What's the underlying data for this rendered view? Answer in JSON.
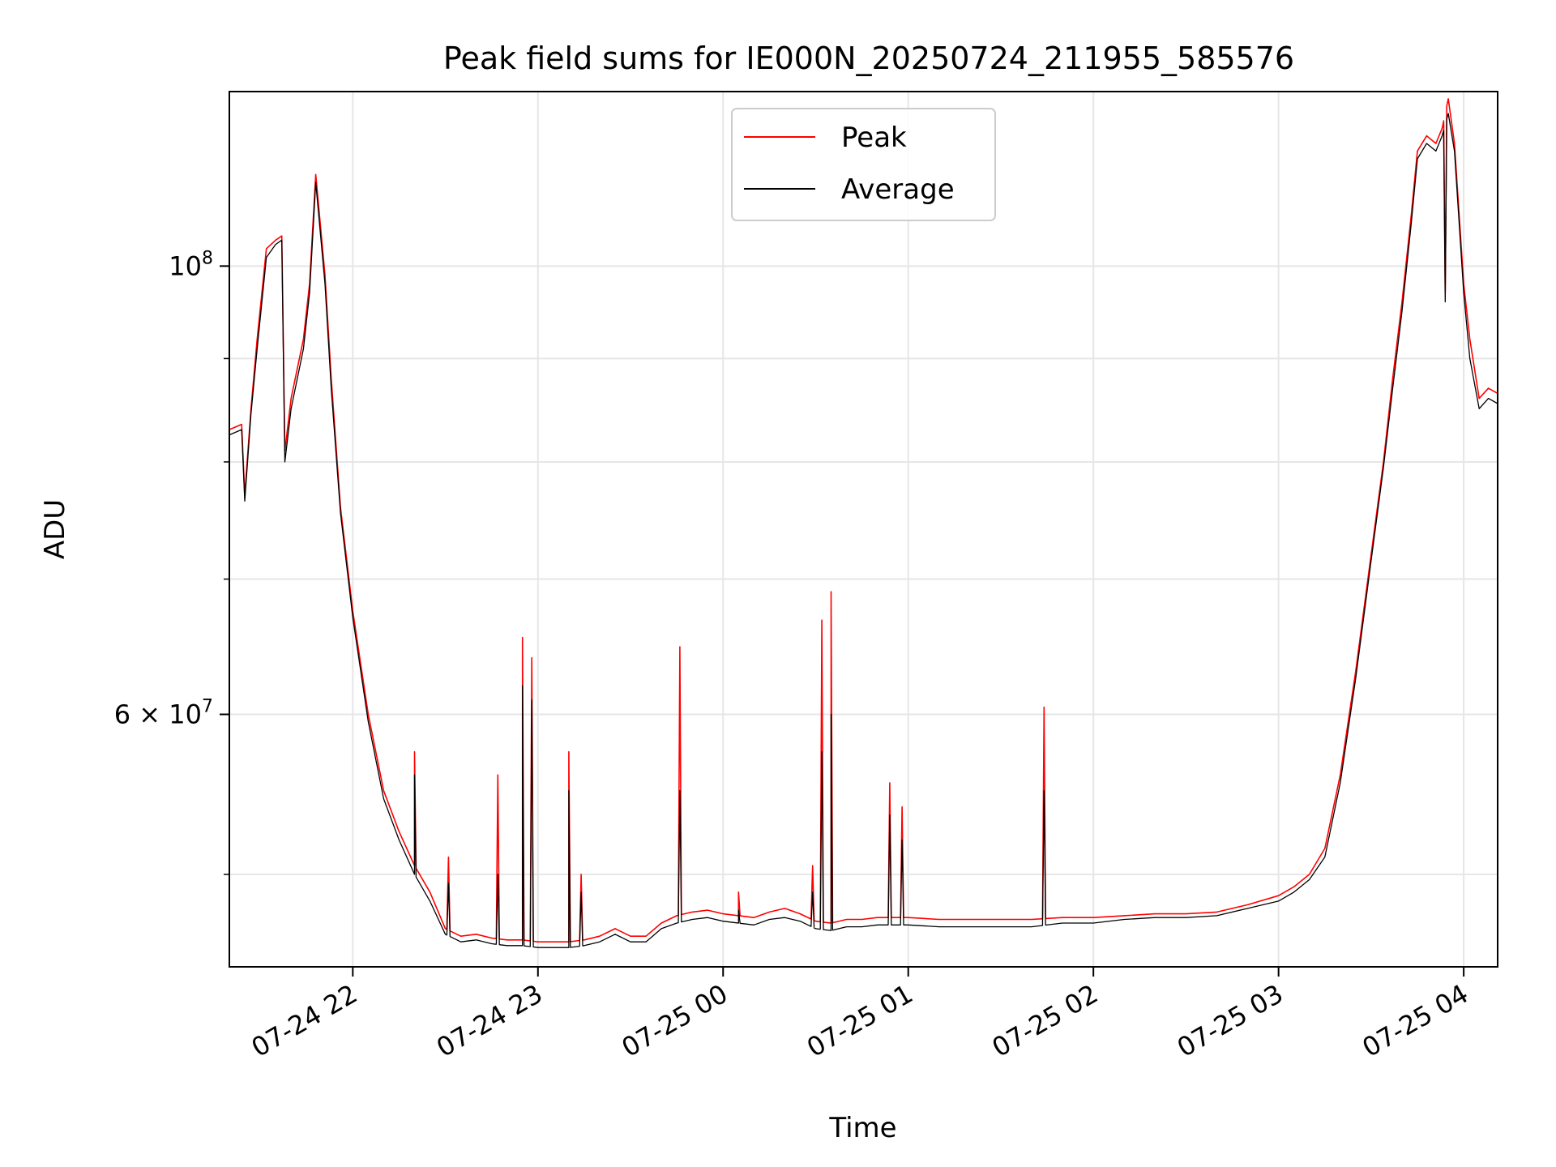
{
  "chart_data": {
    "type": "line",
    "title": "Peak field sums for IE000N_20250724_211955_585576",
    "xlabel": "Time",
    "ylabel": "ADU",
    "y_scale": "log",
    "ylim": [
      45000000,
      122000000
    ],
    "xlim": [
      "2025-07-24T21:20",
      "2025-07-25T04:11"
    ],
    "grid": true,
    "legend_position": "top-center",
    "x_ticks": [
      {
        "value": "2025-07-24T22:00",
        "label": "07-24 22"
      },
      {
        "value": "2025-07-24T23:00",
        "label": "07-24 23"
      },
      {
        "value": "2025-07-25T00:00",
        "label": "07-25 00"
      },
      {
        "value": "2025-07-25T01:00",
        "label": "07-25 01"
      },
      {
        "value": "2025-07-25T02:00",
        "label": "07-25 02"
      },
      {
        "value": "2025-07-25T03:00",
        "label": "07-25 03"
      },
      {
        "value": "2025-07-25T04:00",
        "label": "07-25 04"
      }
    ],
    "y_ticks_major": [
      {
        "value": 100000000,
        "base": "10",
        "exp": "8"
      },
      {
        "value": 60000000,
        "mantissa": "6",
        "base": "10",
        "exp": "7"
      }
    ],
    "y_ticks_minor": [
      50000000,
      70000000,
      80000000,
      90000000
    ],
    "series": [
      {
        "name": "Peak",
        "color": "#ff0000",
        "points": [
          [
            "2025-07-24T21:20",
            83000000
          ],
          [
            "2025-07-24T21:24",
            83500000
          ],
          [
            "2025-07-24T21:25",
            77000000
          ],
          [
            "2025-07-24T21:27",
            85000000
          ],
          [
            "2025-07-24T21:29",
            92000000
          ],
          [
            "2025-07-24T21:32",
            102000000
          ],
          [
            "2025-07-24T21:35",
            103000000
          ],
          [
            "2025-07-24T21:37",
            103500000
          ],
          [
            "2025-07-24T21:38",
            81000000
          ],
          [
            "2025-07-24T21:40",
            86000000
          ],
          [
            "2025-07-24T21:44",
            92000000
          ],
          [
            "2025-07-24T21:46",
            98000000
          ],
          [
            "2025-07-24T21:48",
            111000000
          ],
          [
            "2025-07-24T21:51",
            99000000
          ],
          [
            "2025-07-24T21:53",
            88000000
          ],
          [
            "2025-07-24T21:56",
            76000000
          ],
          [
            "2025-07-24T22:00",
            67500000
          ],
          [
            "2025-07-24T22:05",
            60000000
          ],
          [
            "2025-07-24T22:10",
            55000000
          ],
          [
            "2025-07-24T22:15",
            52500000
          ],
          [
            "2025-07-24T22:20",
            50500000
          ],
          [
            "2025-07-24T22:25",
            49000000
          ],
          [
            "2025-07-24T22:30",
            47000000
          ],
          [
            "2025-07-24T22:35",
            46600000
          ],
          [
            "2025-07-24T22:40",
            46700000
          ],
          [
            "2025-07-24T22:45",
            46500000
          ],
          [
            "2025-07-24T22:50",
            46400000
          ],
          [
            "2025-07-24T22:55",
            46400000
          ],
          [
            "2025-07-24T23:00",
            46300000
          ],
          [
            "2025-07-24T23:10",
            46300000
          ],
          [
            "2025-07-24T23:15",
            46400000
          ],
          [
            "2025-07-24T23:20",
            46600000
          ],
          [
            "2025-07-24T23:25",
            47000000
          ],
          [
            "2025-07-24T23:30",
            46600000
          ],
          [
            "2025-07-24T23:35",
            46600000
          ],
          [
            "2025-07-24T23:40",
            47300000
          ],
          [
            "2025-07-24T23:45",
            47700000
          ],
          [
            "2025-07-24T23:50",
            47900000
          ],
          [
            "2025-07-24T23:55",
            48000000
          ],
          [
            "2025-07-25T00:00",
            47800000
          ],
          [
            "2025-07-25T00:05",
            47700000
          ],
          [
            "2025-07-25T00:10",
            47600000
          ],
          [
            "2025-07-25T00:15",
            47900000
          ],
          [
            "2025-07-25T00:20",
            48100000
          ],
          [
            "2025-07-25T00:25",
            47800000
          ],
          [
            "2025-07-25T00:30",
            47400000
          ],
          [
            "2025-07-25T00:35",
            47300000
          ],
          [
            "2025-07-25T00:40",
            47500000
          ],
          [
            "2025-07-25T00:45",
            47500000
          ],
          [
            "2025-07-25T00:50",
            47600000
          ],
          [
            "2025-07-25T00:55",
            47600000
          ],
          [
            "2025-07-25T01:00",
            47600000
          ],
          [
            "2025-07-25T01:10",
            47500000
          ],
          [
            "2025-07-25T01:20",
            47500000
          ],
          [
            "2025-07-25T01:30",
            47500000
          ],
          [
            "2025-07-25T01:40",
            47500000
          ],
          [
            "2025-07-25T01:50",
            47600000
          ],
          [
            "2025-07-25T02:00",
            47600000
          ],
          [
            "2025-07-25T02:10",
            47700000
          ],
          [
            "2025-07-25T02:20",
            47800000
          ],
          [
            "2025-07-25T02:30",
            47800000
          ],
          [
            "2025-07-25T02:40",
            47900000
          ],
          [
            "2025-07-25T02:50",
            48300000
          ],
          [
            "2025-07-25T03:00",
            48800000
          ],
          [
            "2025-07-25T03:05",
            49300000
          ],
          [
            "2025-07-25T03:10",
            50000000
          ],
          [
            "2025-07-25T03:15",
            51500000
          ],
          [
            "2025-07-25T03:20",
            56000000
          ],
          [
            "2025-07-25T03:25",
            63000000
          ],
          [
            "2025-07-25T03:30",
            72000000
          ],
          [
            "2025-07-25T03:34",
            80000000
          ],
          [
            "2025-07-25T03:37",
            88000000
          ],
          [
            "2025-07-25T03:40",
            96000000
          ],
          [
            "2025-07-25T03:43",
            106000000
          ],
          [
            "2025-07-25T03:45",
            114000000
          ],
          [
            "2025-07-25T03:48",
            116000000
          ],
          [
            "2025-07-25T03:51",
            115000000
          ],
          [
            "2025-07-25T03:53",
            117000000
          ],
          [
            "2025-07-25T03:55",
            121000000
          ],
          [
            "2025-07-25T03:57",
            115000000
          ],
          [
            "2025-07-25T04:00",
            98000000
          ],
          [
            "2025-07-25T04:02",
            92000000
          ],
          [
            "2025-07-25T04:05",
            86000000
          ],
          [
            "2025-07-25T04:08",
            87000000
          ],
          [
            "2025-07-25T04:11",
            86500000
          ]
        ],
        "spikes": [
          [
            "2025-07-24T22:20",
            57500000
          ],
          [
            "2025-07-24T22:31",
            51000000
          ],
          [
            "2025-07-24T22:47",
            56000000
          ],
          [
            "2025-07-24T22:55",
            65500000
          ],
          [
            "2025-07-24T22:58",
            64000000
          ],
          [
            "2025-07-24T23:10",
            57500000
          ],
          [
            "2025-07-24T23:14",
            50000000
          ],
          [
            "2025-07-24T23:46",
            64800000
          ],
          [
            "2025-07-25T00:05",
            49000000
          ],
          [
            "2025-07-25T00:29",
            50500000
          ],
          [
            "2025-07-25T00:32",
            66800000
          ],
          [
            "2025-07-25T00:35",
            69000000
          ],
          [
            "2025-07-25T00:54",
            55500000
          ],
          [
            "2025-07-25T00:58",
            54000000
          ],
          [
            "2025-07-25T01:44",
            60500000
          ],
          [
            "2025-07-25T03:54",
            97000000
          ]
        ]
      },
      {
        "name": "Average",
        "color": "#000000",
        "points": [
          [
            "2025-07-24T21:20",
            82500000
          ],
          [
            "2025-07-24T21:24",
            83000000
          ],
          [
            "2025-07-24T21:25",
            76500000
          ],
          [
            "2025-07-24T21:27",
            84500000
          ],
          [
            "2025-07-24T21:29",
            91000000
          ],
          [
            "2025-07-24T21:32",
            101000000
          ],
          [
            "2025-07-24T21:35",
            102500000
          ],
          [
            "2025-07-24T21:37",
            103000000
          ],
          [
            "2025-07-24T21:38",
            80000000
          ],
          [
            "2025-07-24T21:40",
            85000000
          ],
          [
            "2025-07-24T21:44",
            91000000
          ],
          [
            "2025-07-24T21:46",
            97000000
          ],
          [
            "2025-07-24T21:48",
            110000000
          ],
          [
            "2025-07-24T21:51",
            98000000
          ],
          [
            "2025-07-24T21:53",
            87000000
          ],
          [
            "2025-07-24T21:56",
            75500000
          ],
          [
            "2025-07-24T22:00",
            67000000
          ],
          [
            "2025-07-24T22:05",
            59500000
          ],
          [
            "2025-07-24T22:10",
            54500000
          ],
          [
            "2025-07-24T22:15",
            52000000
          ],
          [
            "2025-07-24T22:20",
            50000000
          ],
          [
            "2025-07-24T22:25",
            48500000
          ],
          [
            "2025-07-24T22:30",
            46700000
          ],
          [
            "2025-07-24T22:35",
            46300000
          ],
          [
            "2025-07-24T22:40",
            46400000
          ],
          [
            "2025-07-24T22:45",
            46200000
          ],
          [
            "2025-07-24T22:50",
            46100000
          ],
          [
            "2025-07-24T22:55",
            46100000
          ],
          [
            "2025-07-24T23:00",
            46000000
          ],
          [
            "2025-07-24T23:10",
            46000000
          ],
          [
            "2025-07-24T23:15",
            46100000
          ],
          [
            "2025-07-24T23:20",
            46300000
          ],
          [
            "2025-07-24T23:25",
            46700000
          ],
          [
            "2025-07-24T23:30",
            46300000
          ],
          [
            "2025-07-24T23:35",
            46300000
          ],
          [
            "2025-07-24T23:40",
            47000000
          ],
          [
            "2025-07-24T23:45",
            47300000
          ],
          [
            "2025-07-24T23:50",
            47500000
          ],
          [
            "2025-07-24T23:55",
            47600000
          ],
          [
            "2025-07-25T00:00",
            47400000
          ],
          [
            "2025-07-25T00:05",
            47300000
          ],
          [
            "2025-07-25T00:10",
            47200000
          ],
          [
            "2025-07-25T00:15",
            47500000
          ],
          [
            "2025-07-25T00:20",
            47600000
          ],
          [
            "2025-07-25T00:25",
            47400000
          ],
          [
            "2025-07-25T00:30",
            47000000
          ],
          [
            "2025-07-25T00:35",
            46900000
          ],
          [
            "2025-07-25T00:40",
            47100000
          ],
          [
            "2025-07-25T00:45",
            47100000
          ],
          [
            "2025-07-25T00:50",
            47200000
          ],
          [
            "2025-07-25T00:55",
            47200000
          ],
          [
            "2025-07-25T01:00",
            47200000
          ],
          [
            "2025-07-25T01:10",
            47100000
          ],
          [
            "2025-07-25T01:20",
            47100000
          ],
          [
            "2025-07-25T01:30",
            47100000
          ],
          [
            "2025-07-25T01:40",
            47100000
          ],
          [
            "2025-07-25T01:50",
            47300000
          ],
          [
            "2025-07-25T02:00",
            47300000
          ],
          [
            "2025-07-25T02:10",
            47500000
          ],
          [
            "2025-07-25T02:20",
            47600000
          ],
          [
            "2025-07-25T02:30",
            47600000
          ],
          [
            "2025-07-25T02:40",
            47700000
          ],
          [
            "2025-07-25T02:50",
            48100000
          ],
          [
            "2025-07-25T03:00",
            48500000
          ],
          [
            "2025-07-25T03:05",
            49000000
          ],
          [
            "2025-07-25T03:10",
            49700000
          ],
          [
            "2025-07-25T03:15",
            51000000
          ],
          [
            "2025-07-25T03:20",
            55500000
          ],
          [
            "2025-07-25T03:25",
            62500000
          ],
          [
            "2025-07-25T03:30",
            71500000
          ],
          [
            "2025-07-25T03:34",
            79500000
          ],
          [
            "2025-07-25T03:37",
            87000000
          ],
          [
            "2025-07-25T03:40",
            95000000
          ],
          [
            "2025-07-25T03:43",
            105000000
          ],
          [
            "2025-07-25T03:45",
            113000000
          ],
          [
            "2025-07-25T03:48",
            115000000
          ],
          [
            "2025-07-25T03:51",
            114000000
          ],
          [
            "2025-07-25T03:53",
            116000000
          ],
          [
            "2025-07-25T03:55",
            119000000
          ],
          [
            "2025-07-25T03:57",
            114000000
          ],
          [
            "2025-07-25T04:00",
            97000000
          ],
          [
            "2025-07-25T04:02",
            90000000
          ],
          [
            "2025-07-25T04:05",
            85000000
          ],
          [
            "2025-07-25T04:08",
            86000000
          ],
          [
            "2025-07-25T04:11",
            85500000
          ]
        ],
        "spikes": [
          [
            "2025-07-24T22:20",
            56000000
          ],
          [
            "2025-07-24T22:31",
            49500000
          ],
          [
            "2025-07-24T22:47",
            50000000
          ],
          [
            "2025-07-24T22:55",
            62000000
          ],
          [
            "2025-07-24T22:58",
            61000000
          ],
          [
            "2025-07-24T23:10",
            55000000
          ],
          [
            "2025-07-24T23:14",
            49000000
          ],
          [
            "2025-07-24T23:46",
            55000000
          ],
          [
            "2025-07-25T00:05",
            48000000
          ],
          [
            "2025-07-25T00:29",
            49000000
          ],
          [
            "2025-07-25T00:32",
            57500000
          ],
          [
            "2025-07-25T00:35",
            60000000
          ],
          [
            "2025-07-25T00:54",
            53500000
          ],
          [
            "2025-07-25T00:58",
            52000000
          ],
          [
            "2025-07-25T01:44",
            55000000
          ],
          [
            "2025-07-25T03:54",
            96000000
          ]
        ]
      }
    ]
  }
}
